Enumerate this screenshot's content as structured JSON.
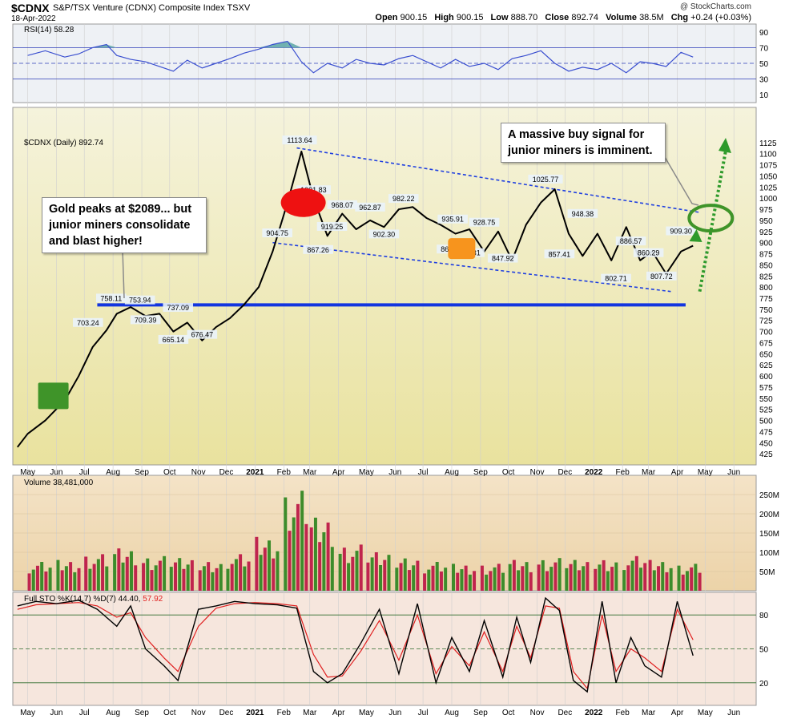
{
  "header": {
    "symbol": "$CDNX",
    "name": "S&P/TSX Venture (CDNX) Composite Index  TSXV",
    "date": "18-Apr-2022",
    "credit": "@ StockCharts.com",
    "open_label": "Open",
    "open": "900.15",
    "high_label": "High",
    "high": "900.15",
    "low_label": "Low",
    "low": "888.70",
    "close_label": "Close",
    "close": "892.74",
    "volume_label": "Volume",
    "volume": "38.5M",
    "chg_label": "Chg",
    "chg": "+0.24 (+0.03%)"
  },
  "annotations": {
    "left": [
      "Gold peaks at $2089... but",
      "junior miners consolidate",
      "and blast higher!"
    ],
    "right": [
      "A massive buy signal for",
      "junior miners is imminent."
    ]
  },
  "colors": {
    "price_bg_top": "#f5f3dc",
    "price_bg_bottom": "#e9e29e",
    "rsi_bg": "#eef1f5",
    "volume_bg_top": "#f4e3c7",
    "volume_bg_bottom": "#ecd3a8",
    "sto_bg": "#f6e6dd",
    "price_line": "#000000",
    "rsi_line": "#3a4fd0",
    "rsi_fill": "#5aa6a5",
    "support_line": "#1235e0",
    "channel_line": "#1f3fe0",
    "up_volume": "#3d8c2b",
    "down_volume": "#c0254d",
    "sto_k": "#000000",
    "sto_d": "#e01f1f",
    "arrow_green": "#2e9a2b",
    "ellipse_green": "#3f9429",
    "marker_red": "#ee1111",
    "marker_orange": "#f7941d",
    "marker_green": "#3f9429"
  },
  "chart_data": [
    {
      "type": "line",
      "panel": "rsi",
      "label": "RSI(14) 58.28",
      "y_ticks": [
        10,
        30,
        50,
        70,
        90
      ],
      "reference_lines": [
        30,
        50,
        70
      ],
      "ylim": [
        10,
        90
      ],
      "x": [
        "2020-05-01",
        "2020-05-20",
        "2020-06-10",
        "2020-06-25",
        "2020-07-10",
        "2020-07-25",
        "2020-08-05",
        "2020-08-20",
        "2020-09-05",
        "2020-09-20",
        "2020-10-05",
        "2020-10-20",
        "2020-11-05",
        "2020-11-20",
        "2020-12-05",
        "2020-12-20",
        "2021-01-05",
        "2021-01-20",
        "2021-02-05",
        "2021-02-20",
        "2021-03-05",
        "2021-03-20",
        "2021-04-05",
        "2021-04-20",
        "2021-05-05",
        "2021-05-20",
        "2021-06-05",
        "2021-06-20",
        "2021-07-05",
        "2021-07-20",
        "2021-08-05",
        "2021-08-20",
        "2021-09-05",
        "2021-09-20",
        "2021-10-05",
        "2021-10-20",
        "2021-11-05",
        "2021-11-20",
        "2021-12-05",
        "2021-12-20",
        "2022-01-05",
        "2022-01-20",
        "2022-02-05",
        "2022-02-20",
        "2022-03-05",
        "2022-03-20",
        "2022-04-05",
        "2022-04-18"
      ],
      "values": [
        60,
        66,
        58,
        62,
        70,
        74,
        60,
        55,
        52,
        46,
        40,
        54,
        44,
        50,
        56,
        63,
        68,
        74,
        78,
        52,
        38,
        50,
        44,
        55,
        50,
        48,
        56,
        60,
        52,
        44,
        55,
        46,
        50,
        42,
        56,
        60,
        66,
        50,
        40,
        45,
        42,
        50,
        38,
        52,
        50,
        46,
        64,
        58
      ]
    },
    {
      "type": "line",
      "panel": "price",
      "label": "$CDNX (Daily) 892.74",
      "ylim": [
        400,
        1150
      ],
      "y_ticks": [
        425,
        450,
        475,
        500,
        525,
        550,
        575,
        600,
        625,
        650,
        675,
        700,
        725,
        750,
        775,
        800,
        825,
        850,
        875,
        900,
        925,
        950,
        975,
        1000,
        1025,
        1050,
        1075,
        1100,
        1125
      ],
      "x_ticks": [
        "May",
        "Jun",
        "Jul",
        "Aug",
        "Sep",
        "Oct",
        "Nov",
        "Dec",
        "2021",
        "Feb",
        "Mar",
        "Apr",
        "May",
        "Jun",
        "Jul",
        "Aug",
        "Sep",
        "Oct",
        "Nov",
        "Dec",
        "2022",
        "Feb",
        "Mar",
        "Apr",
        "May",
        "Jun"
      ],
      "x": [
        "2020-04-20",
        "2020-05-01",
        "2020-05-20",
        "2020-06-10",
        "2020-06-25",
        "2020-07-10",
        "2020-07-25",
        "2020-08-05",
        "2020-08-20",
        "2020-09-05",
        "2020-09-20",
        "2020-10-05",
        "2020-10-20",
        "2020-11-05",
        "2020-11-20",
        "2020-12-05",
        "2020-12-20",
        "2021-01-05",
        "2021-01-20",
        "2021-02-05",
        "2021-02-20",
        "2021-03-05",
        "2021-03-20",
        "2021-04-05",
        "2021-04-20",
        "2021-05-05",
        "2021-05-20",
        "2021-06-05",
        "2021-06-20",
        "2021-07-05",
        "2021-07-20",
        "2021-08-05",
        "2021-08-20",
        "2021-09-05",
        "2021-09-20",
        "2021-10-05",
        "2021-10-20",
        "2021-11-05",
        "2021-11-20",
        "2021-12-05",
        "2021-12-20",
        "2022-01-05",
        "2022-01-20",
        "2022-02-05",
        "2022-02-20",
        "2022-03-05",
        "2022-03-20",
        "2022-04-05",
        "2022-04-18"
      ],
      "values": [
        440,
        470,
        500,
        545,
        600,
        665,
        703,
        740,
        755,
        735,
        740,
        700,
        720,
        680,
        710,
        730,
        760,
        800,
        880,
        990,
        1105,
        1000,
        915,
        965,
        930,
        950,
        935,
        975,
        980,
        955,
        940,
        920,
        930,
        880,
        925,
        860,
        940,
        990,
        1020,
        920,
        870,
        920,
        860,
        935,
        860,
        880,
        830,
        880,
        893
      ],
      "price_labels": [
        {
          "text": "1113.64",
          "x": "2021-02-18",
          "value": 1113.64
        },
        {
          "text": "1001.83",
          "x": "2021-03-05",
          "value": 1001.83
        },
        {
          "text": "968.07",
          "x": "2021-04-05",
          "value": 968.07
        },
        {
          "text": "962.87",
          "x": "2021-05-05",
          "value": 962.87
        },
        {
          "text": "982.22",
          "x": "2021-06-10",
          "value": 982.22
        },
        {
          "text": "935.91",
          "x": "2021-08-02",
          "value": 935.91
        },
        {
          "text": "928.75",
          "x": "2021-09-05",
          "value": 928.75
        },
        {
          "text": "1025.77",
          "x": "2021-11-10",
          "value": 1025.77
        },
        {
          "text": "948.38",
          "x": "2021-12-20",
          "value": 948.38
        },
        {
          "text": "886.57",
          "x": "2022-02-10",
          "value": 886.57
        },
        {
          "text": "860.29",
          "x": "2022-03-01",
          "value": 860.29
        },
        {
          "text": "909.30",
          "x": "2022-04-05",
          "value": 909.3
        },
        {
          "text": "904.75",
          "x": "2021-01-25",
          "value": 904.75
        },
        {
          "text": "867.26",
          "x": "2021-03-10",
          "value": 867.26
        },
        {
          "text": "919.25",
          "x": "2021-03-25",
          "value": 919.25
        },
        {
          "text": "902.30",
          "x": "2021-05-20",
          "value": 902.3
        },
        {
          "text": "868.40",
          "x": "2021-08-01",
          "value": 868.4
        },
        {
          "text": "860.31",
          "x": "2021-08-20",
          "value": 860.31
        },
        {
          "text": "847.92",
          "x": "2021-09-25",
          "value": 847.92
        },
        {
          "text": "857.41",
          "x": "2021-11-25",
          "value": 857.41
        },
        {
          "text": "802.71",
          "x": "2022-01-25",
          "value": 802.71
        },
        {
          "text": "807.72",
          "x": "2022-03-15",
          "value": 807.72
        },
        {
          "text": "758.11",
          "x": "2020-07-30",
          "value": 758.11
        },
        {
          "text": "753.94",
          "x": "2020-08-30",
          "value": 753.94
        },
        {
          "text": "737.09",
          "x": "2020-10-10",
          "value": 737.09
        },
        {
          "text": "703.24",
          "x": "2020-07-05",
          "value": 703.24
        },
        {
          "text": "709.39",
          "x": "2020-09-05",
          "value": 709.39
        },
        {
          "text": "665.14",
          "x": "2020-10-05",
          "value": 665.14
        },
        {
          "text": "676.47",
          "x": "2020-11-05",
          "value": 676.47
        }
      ],
      "support_line": {
        "value": 760,
        "from": "2020-07-15",
        "to": "2022-04-10"
      },
      "channel_upper": {
        "from": {
          "x": "2021-02-15",
          "value": 1113
        },
        "to": {
          "x": "2022-04-25",
          "value": 968
        }
      },
      "channel_lower": {
        "from": {
          "x": "2021-01-20",
          "value": 900
        },
        "to": {
          "x": "2022-03-25",
          "value": 790
        }
      }
    },
    {
      "type": "bar",
      "panel": "volume",
      "label": "Volume 38,481,000",
      "y_ticks_label": [
        "50M",
        "100M",
        "150M",
        "200M",
        "250M"
      ],
      "y_ticks": [
        50,
        100,
        150,
        200,
        250
      ],
      "ylim": [
        0,
        300
      ],
      "unit": "M",
      "x": [
        "2020-05",
        "2020-06",
        "2020-07",
        "2020-08",
        "2020-09",
        "2020-10",
        "2020-11",
        "2020-12",
        "2021-01",
        "2021-02",
        "2021-03",
        "2021-04",
        "2021-05",
        "2021-06",
        "2021-07",
        "2021-08",
        "2021-09",
        "2021-10",
        "2021-11",
        "2021-12",
        "2022-01",
        "2022-02",
        "2022-03",
        "2022-04"
      ],
      "values": [
        75,
        80,
        95,
        110,
        90,
        85,
        80,
        95,
        140,
        260,
        190,
        120,
        100,
        90,
        75,
        70,
        70,
        80,
        85,
        80,
        85,
        90,
        80,
        70
      ]
    },
    {
      "type": "line",
      "panel": "stochastic",
      "label_prefix": "Full STO %K(14,7) %D(7) 44.40, ",
      "label_d_value": "57.92",
      "y_ticks": [
        20,
        50,
        80
      ],
      "reference_lines": [
        20,
        50,
        80
      ],
      "ylim": [
        0,
        100
      ],
      "x": [
        "2020-04-20",
        "2020-05-10",
        "2020-06-01",
        "2020-06-25",
        "2020-07-15",
        "2020-08-05",
        "2020-08-20",
        "2020-09-05",
        "2020-09-25",
        "2020-10-10",
        "2020-11-01",
        "2020-11-20",
        "2020-12-10",
        "2021-01-01",
        "2021-01-25",
        "2021-02-15",
        "2021-03-05",
        "2021-03-20",
        "2021-04-05",
        "2021-04-25",
        "2021-05-15",
        "2021-06-05",
        "2021-06-25",
        "2021-07-15",
        "2021-08-01",
        "2021-08-20",
        "2021-09-05",
        "2021-09-25",
        "2021-10-10",
        "2021-10-25",
        "2021-11-10",
        "2021-11-25",
        "2021-12-10",
        "2021-12-25",
        "2022-01-10",
        "2022-01-25",
        "2022-02-10",
        "2022-02-25",
        "2022-03-15",
        "2022-04-01",
        "2022-04-18"
      ],
      "k_values": [
        88,
        92,
        90,
        93,
        85,
        70,
        88,
        50,
        35,
        22,
        85,
        88,
        92,
        90,
        89,
        86,
        30,
        20,
        28,
        55,
        85,
        28,
        90,
        20,
        60,
        30,
        75,
        25,
        78,
        38,
        95,
        84,
        22,
        12,
        92,
        20,
        60,
        35,
        25,
        92,
        44
      ],
      "d_values": [
        85,
        89,
        90,
        91,
        88,
        78,
        82,
        60,
        42,
        30,
        70,
        86,
        90,
        91,
        90,
        88,
        45,
        25,
        26,
        48,
        75,
        40,
        80,
        28,
        52,
        35,
        65,
        30,
        70,
        42,
        88,
        86,
        30,
        15,
        80,
        30,
        50,
        42,
        30,
        85,
        58
      ]
    }
  ]
}
